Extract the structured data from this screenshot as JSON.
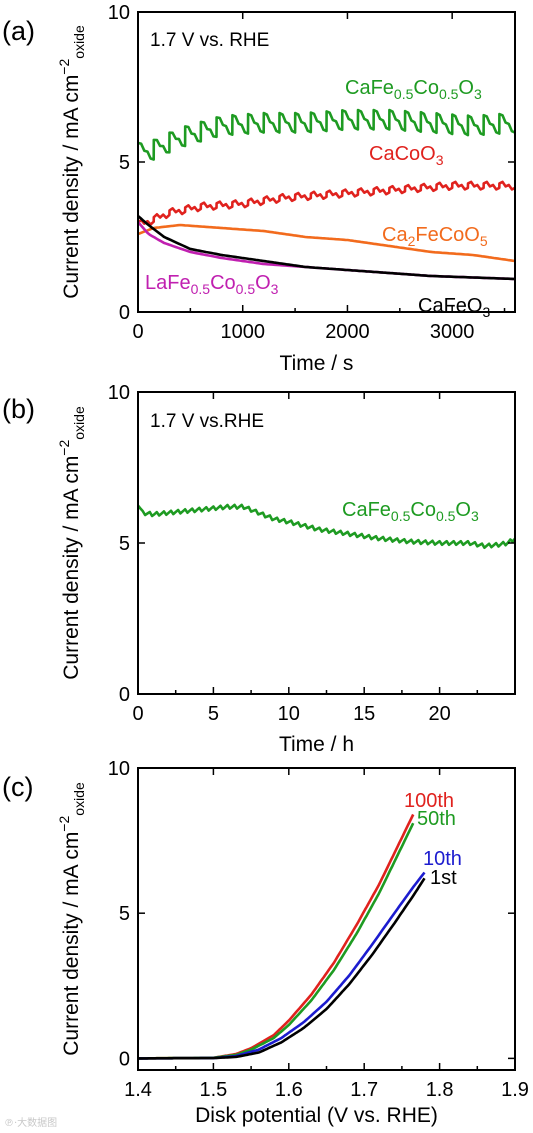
{
  "watermark": "℗·大数据图",
  "chart_data": [
    {
      "type": "line",
      "panel_label": "(a)",
      "annotation": "1.7 V vs. RHE",
      "xlabel": "Time / s",
      "ylabel": "Current density / mA cm",
      "ylabel_sup": "−2",
      "ylabel_sub": "oxide",
      "xlim": [
        0,
        3600
      ],
      "ylim": [
        0,
        10
      ],
      "xticks": [
        0,
        1000,
        2000,
        3000
      ],
      "yticks": [
        0,
        5,
        10
      ],
      "series": [
        {
          "name": "CaFe0.5Co0.5O3",
          "label_parts": [
            "CaFe",
            "0.5",
            "Co",
            "0.5",
            "O",
            "3"
          ],
          "color": "#1e9b22",
          "x": [
            0,
            150,
            400,
            800,
            1200,
            1600,
            2000,
            2400,
            2800,
            3200,
            3600
          ],
          "y": [
            5.3,
            5.4,
            5.8,
            6.2,
            6.3,
            6.3,
            6.4,
            6.4,
            6.3,
            6.2,
            6.3
          ],
          "sawtooth": 0.75
        },
        {
          "name": "CaCoO3",
          "label_parts": [
            "CaCoO",
            "3"
          ],
          "color": "#e0221e",
          "x": [
            0,
            100,
            300,
            600,
            1000,
            1400,
            1800,
            2200,
            2600,
            3000,
            3400,
            3600
          ],
          "y": [
            2.9,
            3.0,
            3.3,
            3.5,
            3.6,
            3.8,
            3.9,
            4.0,
            4.1,
            4.2,
            4.2,
            4.2
          ],
          "sawtooth": 0.25
        },
        {
          "name": "Ca2FeCoO5",
          "label_parts": [
            "Ca",
            "2",
            "FeCoO",
            "5"
          ],
          "color": "#f26b1d",
          "x": [
            0,
            150,
            400,
            800,
            1200,
            1600,
            2000,
            2400,
            2800,
            3200,
            3600
          ],
          "y": [
            2.6,
            2.8,
            2.9,
            2.8,
            2.7,
            2.5,
            2.4,
            2.2,
            2.0,
            1.9,
            1.7
          ],
          "sawtooth": 0
        },
        {
          "name": "LaFe0.5Co0.5O3",
          "label_parts": [
            "LaFe",
            "0.5",
            "Co",
            "0.5",
            "O",
            "3"
          ],
          "color": "#c020b0",
          "x": [
            0,
            100,
            250,
            500,
            800,
            1200,
            1600,
            2000,
            2400,
            2800,
            3200,
            3600
          ],
          "y": [
            3.0,
            2.6,
            2.3,
            2.0,
            1.8,
            1.6,
            1.5,
            1.4,
            1.3,
            1.2,
            1.15,
            1.1
          ],
          "sawtooth": 0
        },
        {
          "name": "CaFeO3",
          "label_parts": [
            "CaFeO",
            "3"
          ],
          "color": "#000000",
          "x": [
            0,
            100,
            250,
            500,
            800,
            1200,
            1600,
            2000,
            2400,
            2800,
            3200,
            3600
          ],
          "y": [
            3.2,
            2.9,
            2.5,
            2.1,
            1.9,
            1.7,
            1.5,
            1.4,
            1.3,
            1.2,
            1.15,
            1.1
          ],
          "sawtooth": 0
        }
      ]
    },
    {
      "type": "line",
      "panel_label": "(b)",
      "annotation": "1.7 V vs.RHE",
      "xlabel": "Time / h",
      "ylabel": "Current density / mA cm",
      "ylabel_sup": "−2",
      "ylabel_sub": "oxide",
      "xlim": [
        0,
        25
      ],
      "ylim": [
        0,
        10
      ],
      "xticks": [
        0,
        5,
        10,
        15,
        20
      ],
      "yticks": [
        0,
        5,
        10
      ],
      "series": [
        {
          "name": "CaFe0.5Co0.5O3",
          "label_parts": [
            "CaFe",
            "0.5",
            "Co",
            "0.5",
            "O",
            "3"
          ],
          "color": "#1e9b22",
          "x": [
            0,
            0.3,
            1,
            2,
            3,
            4,
            5,
            6,
            7,
            8,
            9,
            10,
            12,
            14,
            16,
            18,
            20,
            22,
            23,
            24,
            24.5,
            25
          ],
          "y": [
            6.3,
            6.0,
            5.95,
            6.0,
            6.05,
            6.1,
            6.15,
            6.2,
            6.2,
            6.0,
            5.8,
            5.7,
            5.45,
            5.3,
            5.15,
            5.05,
            5.0,
            5.0,
            4.9,
            4.95,
            5.0,
            5.15
          ],
          "sawtooth": 0
        }
      ]
    },
    {
      "type": "line",
      "panel_label": "(c)",
      "annotation": "",
      "xlabel": "Disk potential (V vs. RHE)",
      "ylabel": "Current density / mA cm",
      "ylabel_sup": "−2",
      "ylabel_sub": "oxide",
      "xlim": [
        1.4,
        1.9
      ],
      "ylim": [
        -0.4,
        10
      ],
      "xticks": [
        1.4,
        1.5,
        1.6,
        1.7,
        1.8,
        1.9
      ],
      "xtick_labels": [
        "1.4",
        "1.5",
        "1.6",
        "1.7",
        "1.8",
        "1.9"
      ],
      "yticks": [
        0,
        5,
        10
      ],
      "series": [
        {
          "name": "100th",
          "label_parts": [
            "100th"
          ],
          "color": "#e0221e",
          "x": [
            1.4,
            1.5,
            1.53,
            1.55,
            1.58,
            1.6,
            1.63,
            1.66,
            1.69,
            1.72,
            1.75,
            1.765
          ],
          "y": [
            0.0,
            0.02,
            0.15,
            0.35,
            0.8,
            1.3,
            2.2,
            3.3,
            4.6,
            6.0,
            7.6,
            8.4
          ],
          "sawtooth": 0
        },
        {
          "name": "50th",
          "label_parts": [
            "50th"
          ],
          "color": "#1e9b22",
          "x": [
            1.4,
            1.5,
            1.53,
            1.55,
            1.58,
            1.6,
            1.63,
            1.66,
            1.69,
            1.72,
            1.75,
            1.765
          ],
          "y": [
            0.0,
            0.02,
            0.12,
            0.3,
            0.7,
            1.15,
            2.0,
            3.05,
            4.3,
            5.7,
            7.3,
            8.1
          ],
          "sawtooth": 0
        },
        {
          "name": "10th",
          "label_parts": [
            "10th"
          ],
          "color": "#1c1ccf",
          "x": [
            1.4,
            1.5,
            1.53,
            1.56,
            1.59,
            1.62,
            1.65,
            1.68,
            1.71,
            1.74,
            1.765,
            1.78
          ],
          "y": [
            0.0,
            0.01,
            0.08,
            0.3,
            0.7,
            1.25,
            1.95,
            2.85,
            3.9,
            5.0,
            5.9,
            6.4
          ],
          "sawtooth": 0
        },
        {
          "name": "1st",
          "label_parts": [
            "1st"
          ],
          "color": "#000000",
          "x": [
            1.4,
            1.5,
            1.53,
            1.56,
            1.59,
            1.62,
            1.65,
            1.68,
            1.71,
            1.74,
            1.765,
            1.78
          ],
          "y": [
            0.0,
            0.01,
            0.05,
            0.2,
            0.55,
            1.05,
            1.7,
            2.55,
            3.55,
            4.65,
            5.6,
            6.2
          ],
          "sawtooth": 0
        }
      ]
    }
  ]
}
